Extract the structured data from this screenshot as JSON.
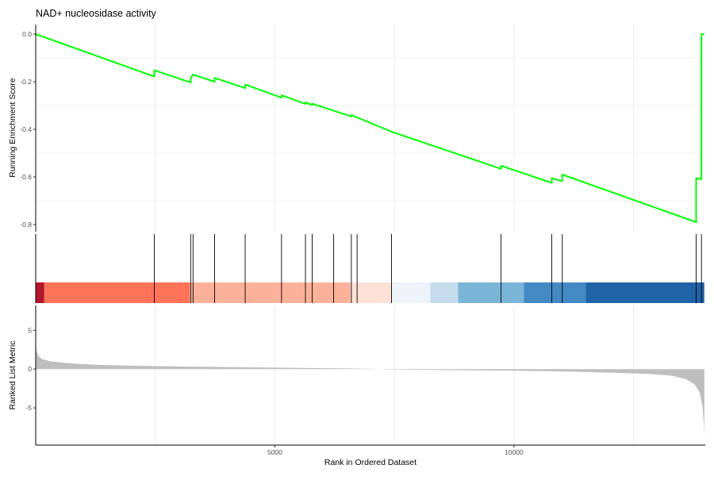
{
  "chart_data": {
    "type": "line",
    "title": "NAD+ nucleosidase activity",
    "xlabel": "Rank in Ordered Dataset",
    "xlim": [
      0,
      14000
    ],
    "x_ticks": [
      5000,
      10000
    ],
    "panels": {
      "running_score": {
        "ylabel": "Running Enrichment Score",
        "ylim": [
          -0.83,
          0.04
        ],
        "y_ticks": [
          0.0,
          -0.2,
          -0.4,
          -0.6,
          -0.8
        ],
        "y_tick_labels": [
          "0.0",
          "-0.2",
          "-0.4",
          "-0.6",
          "-0.8"
        ],
        "series": [
          {
            "color": "#00ff00",
            "points": [
              [
                0,
                0.0
              ],
              [
                2480,
                -0.178
              ],
              [
                2480,
                -0.152
              ],
              [
                3240,
                -0.203
              ],
              [
                3240,
                -0.186
              ],
              [
                3290,
                -0.17
              ],
              [
                3740,
                -0.2
              ],
              [
                3740,
                -0.184
              ],
              [
                4380,
                -0.227
              ],
              [
                4380,
                -0.212
              ],
              [
                5140,
                -0.267
              ],
              [
                5140,
                -0.257
              ],
              [
                5640,
                -0.293
              ],
              [
                5640,
                -0.287
              ],
              [
                5780,
                -0.298
              ],
              [
                5780,
                -0.292
              ],
              [
                6230,
                -0.322
              ],
              [
                6600,
                -0.346
              ],
              [
                6600,
                -0.34
              ],
              [
                7440,
                -0.41
              ],
              [
                9730,
                -0.566
              ],
              [
                9730,
                -0.553
              ],
              [
                10790,
                -0.625
              ],
              [
                10790,
                -0.605
              ],
              [
                11010,
                -0.618
              ],
              [
                11010,
                -0.59
              ],
              [
                13810,
                -0.79
              ],
              [
                13810,
                -0.605
              ],
              [
                13920,
                -0.61
              ],
              [
                13920,
                0.0
              ],
              [
                13980,
                0.0
              ]
            ]
          }
        ]
      },
      "gene_hits": {
        "hit_ranks": [
          2480,
          3240,
          3290,
          3740,
          4380,
          5140,
          5640,
          5780,
          6230,
          6600,
          6720,
          7440,
          9730,
          10790,
          11010,
          13810,
          13920
        ],
        "color_bar": [
          {
            "from": 0,
            "to": 180,
            "color": "#b2182b"
          },
          {
            "from": 180,
            "to": 3220,
            "color": "#ff7359"
          },
          {
            "from": 3220,
            "to": 6580,
            "color": "#fcb19a"
          },
          {
            "from": 6580,
            "to": 7440,
            "color": "#fde1d7"
          },
          {
            "from": 7440,
            "to": 8250,
            "color": "#eef3fa"
          },
          {
            "from": 8250,
            "to": 8830,
            "color": "#c4dcec"
          },
          {
            "from": 8830,
            "to": 10210,
            "color": "#7ab5d8"
          },
          {
            "from": 10210,
            "to": 11500,
            "color": "#4389c4"
          },
          {
            "from": 11500,
            "to": 13980,
            "color": "#2063a6"
          }
        ]
      },
      "ranked_metric": {
        "ylabel": "Ranked List Metric",
        "ylim": [
          -9.8,
          8.2
        ],
        "y_ticks": [
          5,
          0,
          -5
        ],
        "y_tick_labels": [
          "5",
          "0",
          "-5"
        ],
        "fill_color": "#bebebe",
        "profile": [
          [
            0,
            3.3
          ],
          [
            25,
            2.2
          ],
          [
            60,
            1.7
          ],
          [
            130,
            1.3
          ],
          [
            300,
            1.0
          ],
          [
            600,
            0.8
          ],
          [
            1000,
            0.63
          ],
          [
            1500,
            0.5
          ],
          [
            2500,
            0.38
          ],
          [
            3500,
            0.29
          ],
          [
            5000,
            0.18
          ],
          [
            6500,
            0.08
          ],
          [
            7000,
            0.03
          ],
          [
            7400,
            -0.05
          ],
          [
            8500,
            -0.12
          ],
          [
            10000,
            -0.22
          ],
          [
            11000,
            -0.3
          ],
          [
            12000,
            -0.45
          ],
          [
            12800,
            -0.62
          ],
          [
            13300,
            -0.85
          ],
          [
            13600,
            -1.3
          ],
          [
            13780,
            -2.0
          ],
          [
            13880,
            -3.0
          ],
          [
            13940,
            -4.8
          ],
          [
            13970,
            -7.0
          ],
          [
            13980,
            -8.8
          ]
        ]
      }
    }
  }
}
